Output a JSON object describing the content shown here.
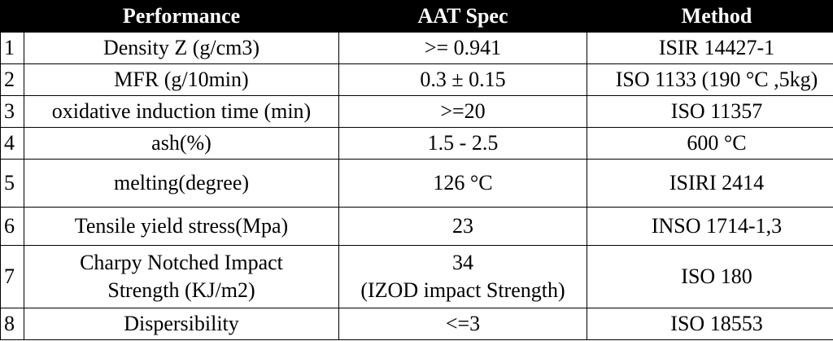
{
  "table": {
    "headers": [
      "",
      "Performance",
      "AAT Spec",
      "Method"
    ],
    "rows": [
      {
        "num": "1",
        "performance": "Density Z (g/cm3)",
        "spec": ">= 0.941",
        "method": "ISIR 14427-1"
      },
      {
        "num": "2",
        "performance": "MFR (g/10min)",
        "spec": "0.3 ± 0.15",
        "method": "ISO 1133 (190 °C ,5kg)"
      },
      {
        "num": "3",
        "performance": "oxidative induction time (min)",
        "spec": ">=20",
        "method": "ISO 11357"
      },
      {
        "num": "4",
        "performance": "ash(%)",
        "spec": "1.5 - 2.5",
        "method": "600 °C"
      },
      {
        "num": "5",
        "performance": "melting(degree)",
        "spec": "126 °C",
        "method": "ISIRI 2414"
      },
      {
        "num": "6",
        "performance": "Tensile yield stress(Mpa)",
        "spec": "23",
        "method": "INSO 1714-1,3"
      },
      {
        "num": "7",
        "performance_lines": [
          "Charpy Notched Impact",
          "Strength (KJ/m2)"
        ],
        "spec_lines": [
          "34",
          "(IZOD impact Strength)"
        ],
        "method": "ISO 180"
      },
      {
        "num": "8",
        "performance": "Dispersibility",
        "spec": "<=3",
        "method": "ISO 18553"
      }
    ]
  }
}
